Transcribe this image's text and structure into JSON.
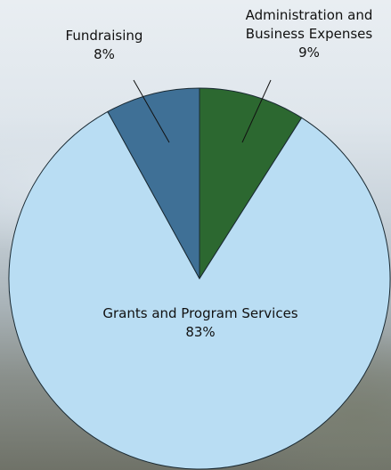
{
  "chart_data": {
    "type": "pie",
    "categories": [
      "Administration and Business Expenses",
      "Grants and Program Services",
      "Fundraising"
    ],
    "values": [
      9,
      83,
      8
    ],
    "value_labels": [
      "9%",
      "83%",
      "8%"
    ],
    "colors": [
      "#2c6830",
      "#b9ddf3",
      "#3f7096"
    ]
  }
}
